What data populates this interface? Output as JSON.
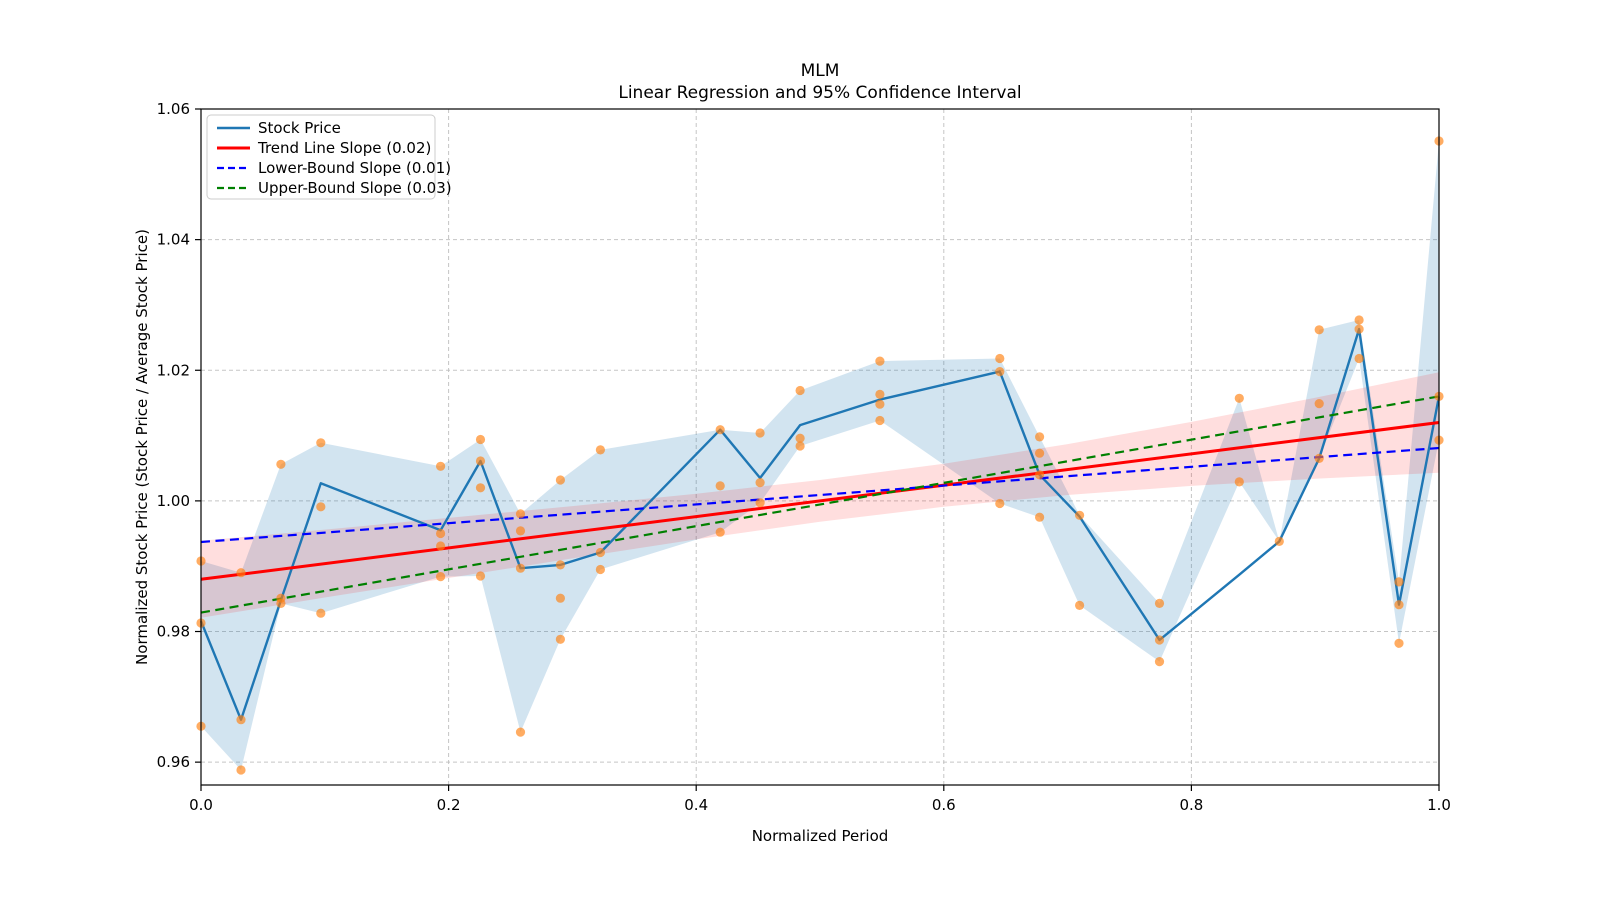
{
  "title": "MLM",
  "subtitle": "Linear Regression and 95% Confidence Interval",
  "xlabel": "Normalized Period",
  "ylabel": "Normalized Stock Price (Stock Price / Average Stock Price)",
  "legend": {
    "items": [
      {
        "label": "Stock Price",
        "color": "#1f77b4",
        "style": "solid"
      },
      {
        "label": "Trend Line Slope (0.02)",
        "color": "#ff0000",
        "style": "solid"
      },
      {
        "label": "Lower-Bound Slope (0.01)",
        "color": "#0000ff",
        "style": "dashed"
      },
      {
        "label": "Upper-Bound Slope (0.03)",
        "color": "#008000",
        "style": "dashed"
      }
    ]
  },
  "axes": {
    "x_tick_labels": [
      "0.0",
      "0.2",
      "0.4",
      "0.6",
      "0.8",
      "1.0"
    ],
    "x_tick_values": [
      0,
      0.2,
      0.4,
      0.6,
      0.8,
      1.0
    ],
    "y_tick_labels": [
      "0.96",
      "0.98",
      "1.00",
      "1.02",
      "1.04",
      "1.06"
    ],
    "y_tick_values": [
      0.96,
      0.98,
      1.0,
      1.02,
      1.04,
      1.06
    ],
    "xlim": [
      0,
      1
    ],
    "ylim": [
      0.9565,
      1.06
    ],
    "grid": true
  },
  "colors": {
    "stock_line": "#1f77b4",
    "scatter": "#ff7f0e",
    "price_band_fill": "#1f77b4",
    "ci_band_fill": "#ff0000",
    "trend": "#ff0000",
    "lower_bound": "#0000ff",
    "upper_bound": "#008000",
    "grid": "#bfbfbf",
    "spine": "#000000"
  },
  "chart_data": {
    "type": "line",
    "title": "MLM — Linear Regression and 95% Confidence Interval",
    "xlabel": "Normalized Period",
    "ylabel": "Normalized Stock Price (Stock Price / Average Stock Price)",
    "xlim": [
      0,
      1
    ],
    "ylim": [
      0.9565,
      1.06
    ],
    "legend_position": "upper-left",
    "x": [
      0.0,
      0.0323,
      0.0645,
      0.0968,
      0.1935,
      0.2258,
      0.2581,
      0.2903,
      0.3226,
      0.4194,
      0.4516,
      0.4839,
      0.5484,
      0.6452,
      0.6774,
      0.7097,
      0.7742,
      0.8387,
      0.871,
      0.9032,
      0.9355,
      0.9677,
      1.0
    ],
    "series": [
      {
        "name": "Stock Price",
        "style": "solid",
        "y": [
          0.9816,
          0.9665,
          0.9848,
          1.0027,
          0.9955,
          1.0061,
          0.9897,
          0.9902,
          0.9921,
          1.0109,
          1.0035,
          1.0116,
          1.0155,
          1.0198,
          1.004,
          0.9976,
          0.9787,
          0.9887,
          0.9938,
          1.0065,
          1.0263,
          0.9841,
          1.016
        ]
      },
      {
        "name": "Trend Line Slope (0.02)",
        "style": "solid",
        "x": [
          0,
          1
        ],
        "y": [
          0.988,
          1.012
        ]
      },
      {
        "name": "Lower-Bound Slope (0.01)",
        "style": "dashed",
        "x": [
          0,
          1
        ],
        "y": [
          0.9937,
          1.0081
        ]
      },
      {
        "name": "Upper-Bound Slope (0.03)",
        "style": "dashed",
        "x": [
          0,
          1
        ],
        "y": [
          0.9829,
          1.016
        ]
      }
    ],
    "price_band": {
      "upper": [
        0.9908,
        0.989,
        1.0056,
        1.0089,
        1.0053,
        1.0094,
        0.998,
        1.0032,
        1.0078,
        1.0109,
        1.0104,
        1.0169,
        1.0214,
        1.0218,
        1.0098,
        0.9978,
        0.9843,
        1.0157,
        0.9938,
        1.0262,
        1.0277,
        0.9876,
        1.0551
      ],
      "lower": [
        0.9655,
        0.9588,
        0.9843,
        0.9828,
        0.9884,
        0.9885,
        0.9646,
        0.9788,
        0.9895,
        0.9952,
        0.9997,
        1.0084,
        1.0123,
        0.9996,
        0.9975,
        0.984,
        0.9754,
        1.0029,
        0.9938,
        1.0065,
        1.0218,
        0.9782,
        1.0093
      ]
    },
    "ci_band": {
      "x": [
        0.0,
        0.1,
        0.2,
        0.3,
        0.4,
        0.5,
        0.6,
        0.7,
        0.8,
        0.9,
        1.0
      ],
      "lower": [
        0.9821,
        0.9852,
        0.9882,
        0.9912,
        0.9941,
        0.9968,
        0.9991,
        1.0009,
        1.0023,
        1.0034,
        1.0043
      ],
      "upper": [
        0.9939,
        0.9956,
        0.9974,
        0.9992,
        1.0011,
        1.0032,
        1.0057,
        1.0087,
        1.0121,
        1.0158,
        1.0197
      ]
    },
    "scatter": [
      [
        0.0,
        0.9908
      ],
      [
        0.0,
        0.9813
      ],
      [
        0.0,
        0.9655
      ],
      [
        0.0323,
        0.989
      ],
      [
        0.0323,
        0.9665
      ],
      [
        0.0323,
        0.9588
      ],
      [
        0.0645,
        1.0056
      ],
      [
        0.0645,
        0.9851
      ],
      [
        0.0645,
        0.9843
      ],
      [
        0.0968,
        1.0089
      ],
      [
        0.0968,
        0.9991
      ],
      [
        0.0968,
        0.9828
      ],
      [
        0.1935,
        1.0053
      ],
      [
        0.1935,
        0.995
      ],
      [
        0.1935,
        0.9931
      ],
      [
        0.1935,
        0.9884
      ],
      [
        0.2258,
        1.0094
      ],
      [
        0.2258,
        1.0061
      ],
      [
        0.2258,
        1.002
      ],
      [
        0.2258,
        0.9885
      ],
      [
        0.2581,
        0.998
      ],
      [
        0.2581,
        0.9954
      ],
      [
        0.2581,
        0.9897
      ],
      [
        0.2581,
        0.9646
      ],
      [
        0.2903,
        1.0032
      ],
      [
        0.2903,
        0.9902
      ],
      [
        0.2903,
        0.9851
      ],
      [
        0.2903,
        0.9788
      ],
      [
        0.3226,
        1.0078
      ],
      [
        0.3226,
        0.9921
      ],
      [
        0.3226,
        0.9895
      ],
      [
        0.4194,
        1.0109
      ],
      [
        0.4194,
        1.0023
      ],
      [
        0.4194,
        0.9952
      ],
      [
        0.4516,
        1.0104
      ],
      [
        0.4516,
        1.0028
      ],
      [
        0.4516,
        0.9997
      ],
      [
        0.4839,
        1.0169
      ],
      [
        0.4839,
        1.0096
      ],
      [
        0.4839,
        1.0084
      ],
      [
        0.5484,
        1.0214
      ],
      [
        0.5484,
        1.0163
      ],
      [
        0.5484,
        1.0148
      ],
      [
        0.5484,
        1.0123
      ],
      [
        0.6452,
        1.0218
      ],
      [
        0.6452,
        1.0198
      ],
      [
        0.6452,
        0.9996
      ],
      [
        0.6774,
        1.0098
      ],
      [
        0.6774,
        1.0073
      ],
      [
        0.6774,
        1.004
      ],
      [
        0.6774,
        0.9975
      ],
      [
        0.7097,
        0.9978
      ],
      [
        0.7097,
        0.984
      ],
      [
        0.7742,
        0.9843
      ],
      [
        0.7742,
        0.9787
      ],
      [
        0.7742,
        0.9754
      ],
      [
        0.8387,
        1.0157
      ],
      [
        0.8387,
        1.0029
      ],
      [
        0.871,
        0.9938
      ],
      [
        0.9032,
        1.0262
      ],
      [
        0.9032,
        1.0149
      ],
      [
        0.9032,
        1.0065
      ],
      [
        0.9355,
        1.0277
      ],
      [
        0.9355,
        1.0263
      ],
      [
        0.9355,
        1.0218
      ],
      [
        0.9677,
        0.9876
      ],
      [
        0.9677,
        0.9841
      ],
      [
        0.9677,
        0.9782
      ],
      [
        1.0,
        1.0551
      ],
      [
        1.0,
        1.016
      ],
      [
        1.0,
        1.0093
      ]
    ]
  }
}
